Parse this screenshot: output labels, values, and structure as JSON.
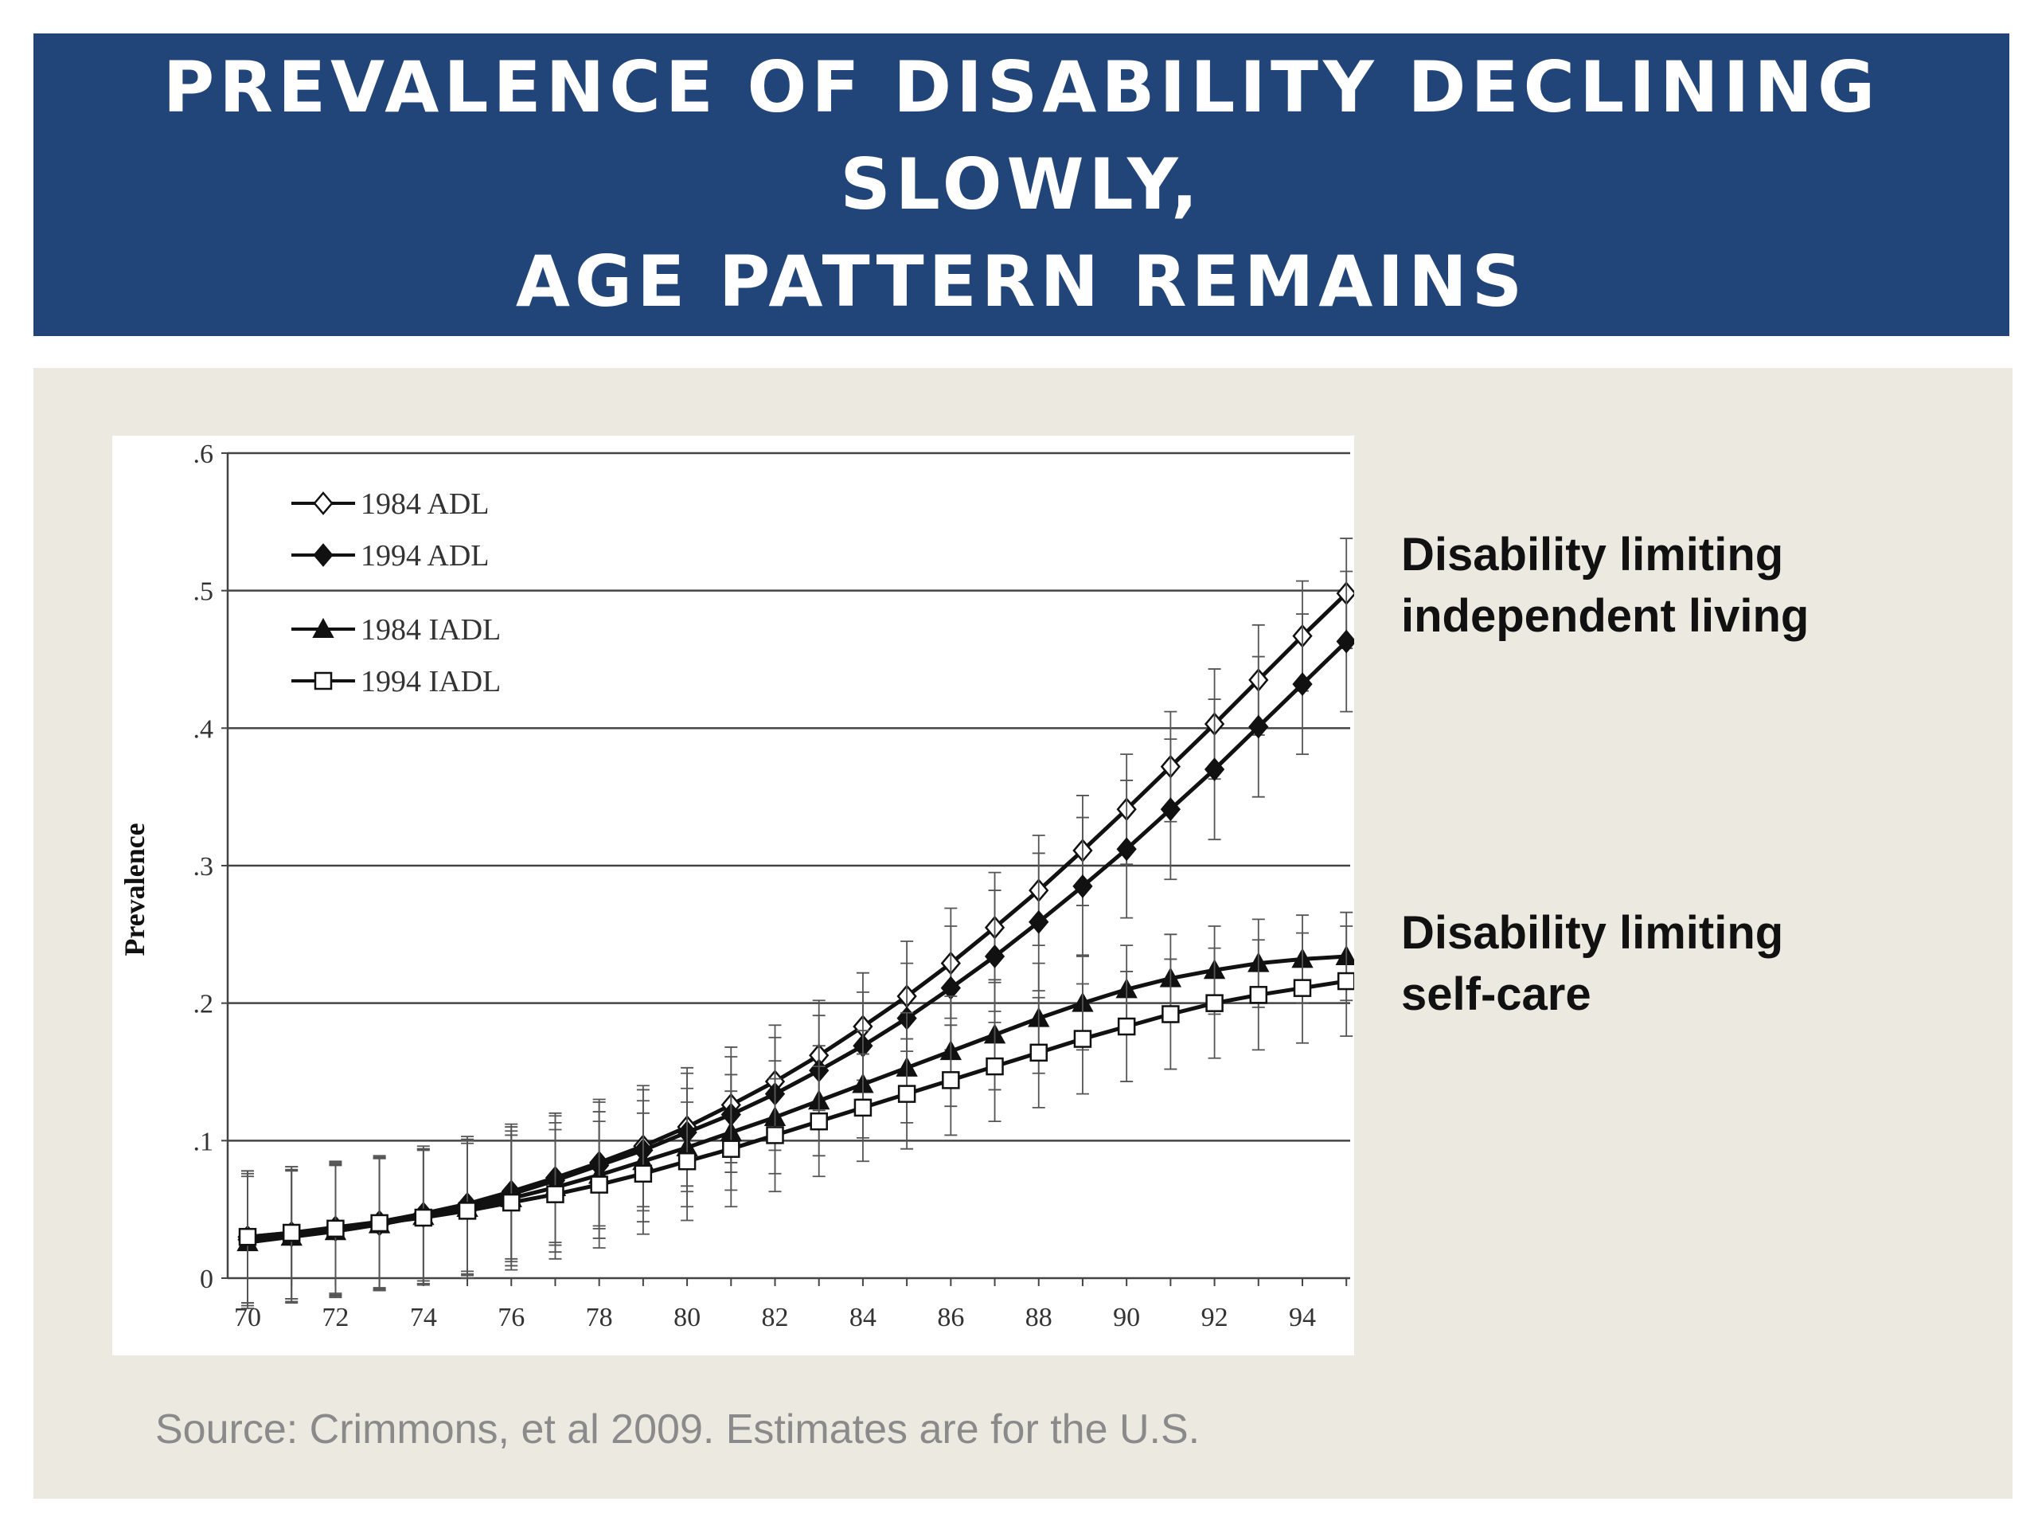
{
  "header": {
    "title_line1": "PREVALENCE OF DISABILITY DECLINING SLOWLY,",
    "title_line2": "AGE PATTERN REMAINS"
  },
  "annotations": {
    "adl_line1": "Disability limiting",
    "adl_line2": "independent living",
    "iadl_line1": "Disability limiting",
    "iadl_line2": "self-care"
  },
  "source": "Source: Crimmons, et al 2009. Estimates are for the U.S.",
  "colors": {
    "banner": "#214578",
    "panel": "#ebe9e0",
    "line": "#111111"
  },
  "chart_data": {
    "type": "line",
    "title": "",
    "xlabel": "",
    "ylabel": "Prevalence",
    "xlim": [
      70,
      95
    ],
    "ylim": [
      0,
      0.6
    ],
    "grid": "horizontal",
    "legend_position": "top-left",
    "x_ticks": [
      "70",
      "72",
      "74",
      "76",
      "78",
      "80",
      "82",
      "84",
      "86",
      "88",
      "90",
      "92",
      "94"
    ],
    "y_ticks": [
      "0",
      ".1",
      ".2",
      ".3",
      ".4",
      ".5",
      ".6"
    ],
    "x": [
      70,
      71,
      72,
      73,
      74,
      75,
      76,
      77,
      78,
      79,
      80,
      81,
      82,
      83,
      84,
      85,
      86,
      87,
      88,
      89,
      90,
      91,
      92,
      93,
      94,
      95
    ],
    "series": [
      {
        "name": "1984 ADL",
        "marker": "diamond-open",
        "values": [
          0.03,
          0.033,
          0.037,
          0.041,
          0.047,
          0.054,
          0.063,
          0.073,
          0.084,
          0.096,
          0.11,
          0.126,
          0.143,
          0.162,
          0.183,
          0.205,
          0.229,
          0.255,
          0.282,
          0.311,
          0.341,
          0.372,
          0.403,
          0.435,
          0.467,
          0.498
        ],
        "error": [
          0.048,
          0.048,
          0.048,
          0.048,
          0.049,
          0.049,
          0.049,
          0.047,
          0.046,
          0.044,
          0.043,
          0.042,
          0.041,
          0.04,
          0.039,
          0.04,
          0.04,
          0.04,
          0.04,
          0.04,
          0.04,
          0.04,
          0.04,
          0.04,
          0.04,
          0.04
        ]
      },
      {
        "name": "1994 ADL",
        "marker": "diamond-filled",
        "values": [
          0.028,
          0.031,
          0.035,
          0.039,
          0.045,
          0.052,
          0.061,
          0.071,
          0.082,
          0.093,
          0.106,
          0.119,
          0.134,
          0.151,
          0.169,
          0.189,
          0.211,
          0.234,
          0.259,
          0.285,
          0.312,
          0.341,
          0.37,
          0.401,
          0.432,
          0.463
        ],
        "error": [
          0.048,
          0.048,
          0.048,
          0.048,
          0.049,
          0.049,
          0.049,
          0.047,
          0.046,
          0.044,
          0.043,
          0.042,
          0.041,
          0.04,
          0.039,
          0.04,
          0.045,
          0.048,
          0.05,
          0.05,
          0.05,
          0.051,
          0.051,
          0.051,
          0.051,
          0.051
        ]
      },
      {
        "name": "1984 IADL",
        "marker": "triangle-filled",
        "values": [
          0.026,
          0.03,
          0.034,
          0.039,
          0.045,
          0.051,
          0.058,
          0.066,
          0.075,
          0.085,
          0.095,
          0.106,
          0.117,
          0.129,
          0.141,
          0.153,
          0.165,
          0.177,
          0.189,
          0.2,
          0.21,
          0.218,
          0.224,
          0.229,
          0.232,
          0.234
        ],
        "error": [
          0.048,
          0.048,
          0.048,
          0.048,
          0.049,
          0.049,
          0.049,
          0.047,
          0.046,
          0.044,
          0.043,
          0.042,
          0.041,
          0.04,
          0.039,
          0.04,
          0.04,
          0.04,
          0.04,
          0.034,
          0.032,
          0.032,
          0.032,
          0.032,
          0.032,
          0.032
        ]
      },
      {
        "name": "1994 IADL",
        "marker": "square-open",
        "values": [
          0.03,
          0.033,
          0.036,
          0.04,
          0.044,
          0.049,
          0.055,
          0.061,
          0.068,
          0.076,
          0.085,
          0.094,
          0.104,
          0.114,
          0.124,
          0.134,
          0.144,
          0.154,
          0.164,
          0.174,
          0.183,
          0.192,
          0.2,
          0.206,
          0.211,
          0.216
        ],
        "error": [
          0.048,
          0.048,
          0.048,
          0.048,
          0.049,
          0.049,
          0.049,
          0.047,
          0.046,
          0.044,
          0.043,
          0.042,
          0.041,
          0.04,
          0.039,
          0.04,
          0.04,
          0.04,
          0.04,
          0.04,
          0.04,
          0.04,
          0.04,
          0.04,
          0.04,
          0.04
        ]
      }
    ]
  }
}
